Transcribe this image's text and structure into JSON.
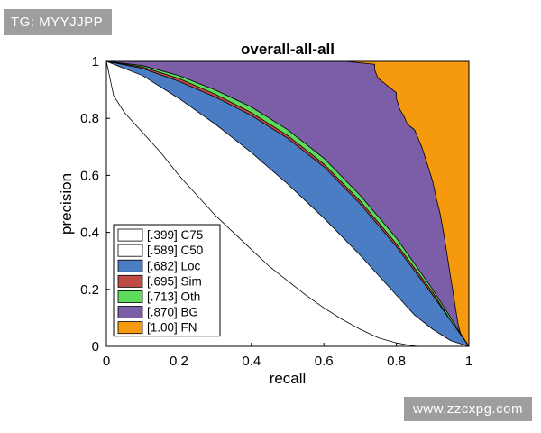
{
  "watermarks": {
    "top_left": "TG: MYYJJPP",
    "bottom_right": "www.zzcxpg.com"
  },
  "chart_data": {
    "type": "area",
    "title": "overall-all-all",
    "xlabel": "recall",
    "ylabel": "precision",
    "xlim": [
      0,
      1
    ],
    "ylim": [
      0,
      1
    ],
    "x_ticks": [
      "0",
      "0.2",
      "0.4",
      "0.6",
      "0.8",
      "1"
    ],
    "y_ticks": [
      "0",
      "0.2",
      "0.4",
      "0.6",
      "0.8",
      "1"
    ],
    "legend_position": "bottom-left",
    "series": [
      {
        "name": "FN",
        "ap": "[1.00]",
        "label": "[1.00] FN",
        "color": "#F59A0C",
        "curve": [
          [
            0,
            1
          ],
          [
            1,
            1
          ],
          [
            1,
            0
          ]
        ]
      },
      {
        "name": "BG",
        "ap": "[.870]",
        "label": "[.870] BG",
        "color": "#7B5DA8",
        "curve": [
          [
            0,
            1
          ],
          [
            0.66,
            1
          ],
          [
            0.74,
            0.99
          ],
          [
            0.74,
            0.97
          ],
          [
            0.75,
            0.94
          ],
          [
            0.76,
            0.93
          ],
          [
            0.78,
            0.91
          ],
          [
            0.8,
            0.89
          ],
          [
            0.8,
            0.87
          ],
          [
            0.81,
            0.83
          ],
          [
            0.82,
            0.81
          ],
          [
            0.83,
            0.78
          ],
          [
            0.84,
            0.77
          ],
          [
            0.85,
            0.76
          ],
          [
            0.86,
            0.73
          ],
          [
            0.87,
            0.7
          ],
          [
            0.88,
            0.66
          ],
          [
            0.89,
            0.62
          ],
          [
            0.9,
            0.58
          ],
          [
            0.91,
            0.52
          ],
          [
            0.92,
            0.47
          ],
          [
            0.93,
            0.4
          ],
          [
            0.94,
            0.32
          ],
          [
            0.95,
            0.24
          ],
          [
            0.96,
            0.16
          ],
          [
            0.97,
            0.08
          ],
          [
            0.98,
            0.03
          ],
          [
            1,
            0
          ]
        ]
      },
      {
        "name": "Oth",
        "ap": "[.713]",
        "label": "[.713] Oth",
        "color": "#5CDB5C",
        "curve": [
          [
            0,
            1
          ],
          [
            0.1,
            0.985
          ],
          [
            0.2,
            0.95
          ],
          [
            0.3,
            0.9
          ],
          [
            0.4,
            0.84
          ],
          [
            0.5,
            0.76
          ],
          [
            0.6,
            0.66
          ],
          [
            0.7,
            0.53
          ],
          [
            0.8,
            0.38
          ],
          [
            0.9,
            0.2
          ],
          [
            0.95,
            0.1
          ],
          [
            1,
            0
          ]
        ]
      },
      {
        "name": "Sim",
        "ap": "[.695]",
        "label": "[.695] Sim",
        "color": "#BE4A43",
        "curve": [
          [
            0,
            1
          ],
          [
            0.1,
            0.98
          ],
          [
            0.2,
            0.94
          ],
          [
            0.3,
            0.885
          ],
          [
            0.4,
            0.82
          ],
          [
            0.5,
            0.74
          ],
          [
            0.6,
            0.64
          ],
          [
            0.7,
            0.51
          ],
          [
            0.8,
            0.36
          ],
          [
            0.9,
            0.19
          ],
          [
            0.95,
            0.09
          ],
          [
            1,
            0
          ]
        ]
      },
      {
        "name": "Loc",
        "ap": "[.682]",
        "label": "[.682] Loc",
        "color": "#4A7DC4",
        "curve": [
          [
            0,
            1
          ],
          [
            0.1,
            0.975
          ],
          [
            0.2,
            0.93
          ],
          [
            0.3,
            0.875
          ],
          [
            0.4,
            0.81
          ],
          [
            0.5,
            0.73
          ],
          [
            0.6,
            0.63
          ],
          [
            0.7,
            0.5
          ],
          [
            0.8,
            0.35
          ],
          [
            0.9,
            0.18
          ],
          [
            0.95,
            0.09
          ],
          [
            1,
            0
          ]
        ]
      },
      {
        "name": "C50",
        "ap": "[.589]",
        "label": "[.589] C50",
        "color": "#FFFFFF",
        "curve": [
          [
            0,
            1
          ],
          [
            0.1,
            0.95
          ],
          [
            0.2,
            0.87
          ],
          [
            0.3,
            0.78
          ],
          [
            0.4,
            0.68
          ],
          [
            0.5,
            0.57
          ],
          [
            0.6,
            0.45
          ],
          [
            0.7,
            0.32
          ],
          [
            0.8,
            0.18
          ],
          [
            0.85,
            0.11
          ],
          [
            0.9,
            0.06
          ],
          [
            0.95,
            0.02
          ],
          [
            1,
            0
          ]
        ]
      },
      {
        "name": "C75",
        "ap": "[.399]",
        "label": "[.399] C75",
        "color": "#FFFFFF",
        "curve": [
          [
            0,
            1
          ],
          [
            0.02,
            0.88
          ],
          [
            0.05,
            0.82
          ],
          [
            0.1,
            0.75
          ],
          [
            0.15,
            0.68
          ],
          [
            0.2,
            0.6
          ],
          [
            0.25,
            0.53
          ],
          [
            0.3,
            0.46
          ],
          [
            0.35,
            0.4
          ],
          [
            0.4,
            0.34
          ],
          [
            0.45,
            0.28
          ],
          [
            0.5,
            0.23
          ],
          [
            0.55,
            0.18
          ],
          [
            0.6,
            0.135
          ],
          [
            0.65,
            0.095
          ],
          [
            0.7,
            0.06
          ],
          [
            0.75,
            0.03
          ],
          [
            0.8,
            0.012
          ],
          [
            0.84,
            0.003
          ],
          [
            0.86,
            0
          ]
        ]
      }
    ]
  }
}
